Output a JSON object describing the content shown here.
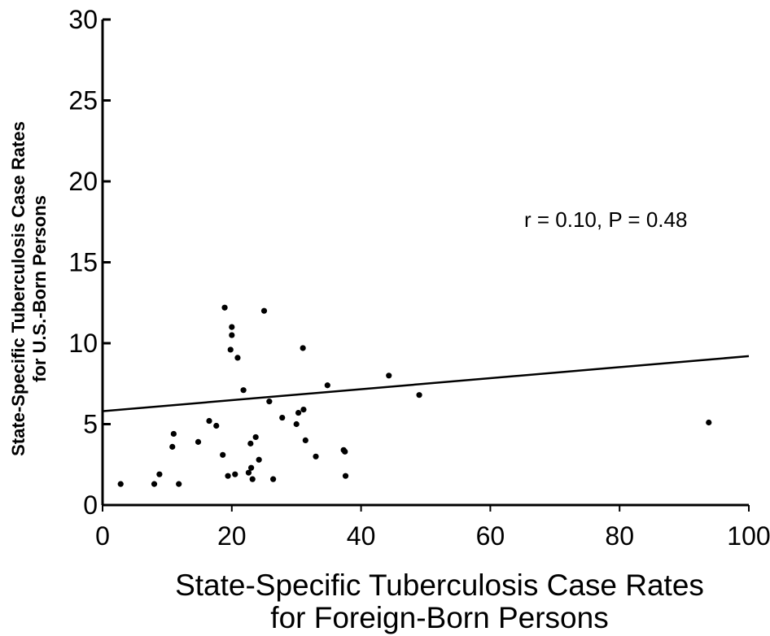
{
  "chart_data": {
    "type": "scatter",
    "title": "",
    "xlabel_lines": [
      "State-Specific Tuberculosis Case Rates",
      "for Foreign-Born Persons"
    ],
    "ylabel_lines": [
      "State-Specific Tuberculosis Case Rates",
      "for U.S.-Born Persons"
    ],
    "xlim": [
      0,
      100
    ],
    "ylim": [
      0,
      30
    ],
    "xticks": [
      0,
      20,
      40,
      60,
      80,
      100
    ],
    "yticks": [
      0,
      5,
      10,
      15,
      20,
      25,
      30
    ],
    "x_tick_labels": [
      "0",
      "20",
      "40",
      "60",
      "80",
      "100"
    ],
    "y_tick_labels": [
      "0",
      "5",
      "10",
      "15",
      "20",
      "25",
      "30"
    ],
    "grid": false,
    "annotation": "r = 0.10, P = 0.48",
    "trend_line": {
      "x": [
        0,
        100
      ],
      "y": [
        5.8,
        9.2
      ]
    },
    "points": [
      {
        "x": 2.8,
        "y": 1.3
      },
      {
        "x": 8.0,
        "y": 1.3
      },
      {
        "x": 8.8,
        "y": 1.9
      },
      {
        "x": 10.8,
        "y": 3.6
      },
      {
        "x": 11.0,
        "y": 4.4
      },
      {
        "x": 11.8,
        "y": 1.3
      },
      {
        "x": 14.8,
        "y": 3.9
      },
      {
        "x": 16.5,
        "y": 5.2
      },
      {
        "x": 17.6,
        "y": 4.9
      },
      {
        "x": 18.6,
        "y": 3.1
      },
      {
        "x": 18.9,
        "y": 12.2
      },
      {
        "x": 19.4,
        "y": 1.8
      },
      {
        "x": 19.8,
        "y": 9.6
      },
      {
        "x": 20.0,
        "y": 11.0
      },
      {
        "x": 20.0,
        "y": 10.5
      },
      {
        "x": 20.5,
        "y": 1.9
      },
      {
        "x": 20.9,
        "y": 9.1
      },
      {
        "x": 21.8,
        "y": 7.1
      },
      {
        "x": 22.6,
        "y": 2.0
      },
      {
        "x": 22.9,
        "y": 3.8
      },
      {
        "x": 23.0,
        "y": 2.3
      },
      {
        "x": 23.2,
        "y": 1.6
      },
      {
        "x": 23.7,
        "y": 4.2
      },
      {
        "x": 24.2,
        "y": 2.8
      },
      {
        "x": 25.0,
        "y": 12.0
      },
      {
        "x": 25.8,
        "y": 6.4
      },
      {
        "x": 26.4,
        "y": 1.6
      },
      {
        "x": 27.8,
        "y": 5.4
      },
      {
        "x": 30.0,
        "y": 5.0
      },
      {
        "x": 30.3,
        "y": 5.7
      },
      {
        "x": 31.0,
        "y": 9.7
      },
      {
        "x": 31.1,
        "y": 5.9
      },
      {
        "x": 31.4,
        "y": 4.0
      },
      {
        "x": 33.0,
        "y": 3.0
      },
      {
        "x": 34.8,
        "y": 7.4
      },
      {
        "x": 37.3,
        "y": 3.4
      },
      {
        "x": 37.5,
        "y": 3.3
      },
      {
        "x": 37.6,
        "y": 1.8
      },
      {
        "x": 44.3,
        "y": 8.0
      },
      {
        "x": 49.0,
        "y": 6.8
      },
      {
        "x": 93.8,
        "y": 5.1
      }
    ]
  }
}
